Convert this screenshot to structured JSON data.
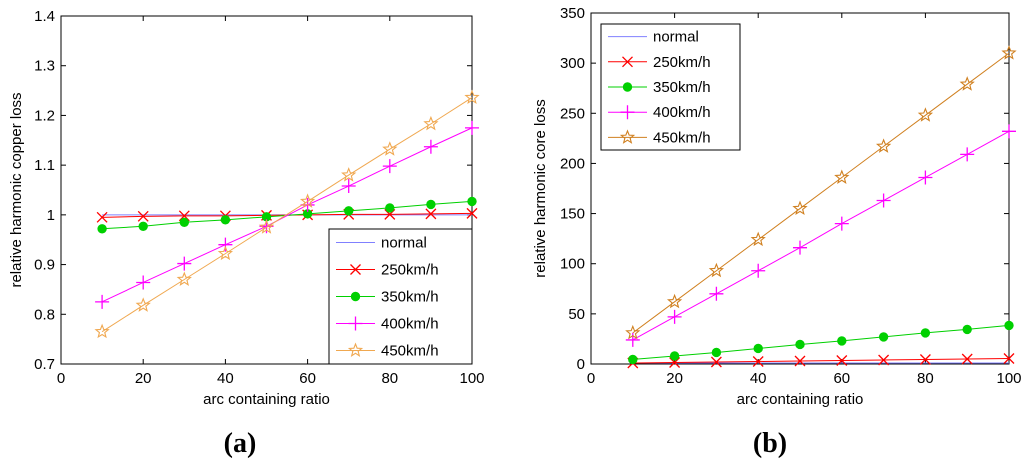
{
  "chart_data": [
    {
      "type": "line",
      "panel_label": "(a)",
      "xlabel": "arc containing ratio",
      "ylabel": "relative harmonic copper loss",
      "xlim": [
        0,
        100
      ],
      "ylim": [
        0.7,
        1.4
      ],
      "xticks": [
        "0",
        "20",
        "40",
        "60",
        "80",
        "100"
      ],
      "yticks": [
        "0.7",
        "0.8",
        "0.9",
        "1",
        "1.1",
        "1.2",
        "1.3",
        "1.4"
      ],
      "legend_position": "bottom-right",
      "x": [
        10,
        20,
        30,
        40,
        50,
        60,
        70,
        80,
        90,
        100
      ],
      "series": [
        {
          "name": "normal",
          "color": "#8080ff",
          "marker": "none",
          "values": [
            1.0,
            1.0,
            1.0,
            1.0,
            1.0,
            1.0,
            1.0,
            1.0,
            1.0,
            1.0
          ]
        },
        {
          "name": "250km/h",
          "color": "#ff0000",
          "marker": "x",
          "values": [
            0.995,
            0.997,
            0.998,
            0.998,
            0.999,
            1.0,
            1.001,
            1.001,
            1.002,
            1.003
          ]
        },
        {
          "name": "350km/h",
          "color": "#00d000",
          "marker": "dot",
          "values": [
            0.972,
            0.977,
            0.985,
            0.99,
            0.996,
            1.002,
            1.008,
            1.014,
            1.021,
            1.027
          ]
        },
        {
          "name": "400km/h",
          "color": "#ff00ff",
          "marker": "plus",
          "values": [
            0.825,
            0.864,
            0.902,
            0.94,
            0.977,
            1.02,
            1.058,
            1.098,
            1.137,
            1.175
          ]
        },
        {
          "name": "450km/h",
          "color": "#f0a850",
          "marker": "star",
          "values": [
            0.765,
            0.818,
            0.87,
            0.922,
            0.975,
            1.027,
            1.08,
            1.132,
            1.183,
            1.236
          ]
        }
      ]
    },
    {
      "type": "line",
      "panel_label": "(b)",
      "xlabel": "arc containing ratio",
      "ylabel": "relative harmonic core loss",
      "xlim": [
        0,
        100
      ],
      "ylim": [
        0,
        350
      ],
      "xticks": [
        "0",
        "20",
        "40",
        "60",
        "80",
        "100"
      ],
      "yticks": [
        "0",
        "50",
        "100",
        "150",
        "200",
        "250",
        "300",
        "350"
      ],
      "legend_position": "top-left",
      "x": [
        10,
        20,
        30,
        40,
        50,
        60,
        70,
        80,
        90,
        100
      ],
      "series": [
        {
          "name": "normal",
          "color": "#8080ff",
          "marker": "none",
          "values": [
            1,
            1,
            1,
            1,
            1,
            1,
            1,
            1,
            1,
            1
          ]
        },
        {
          "name": "250km/h",
          "color": "#ff0000",
          "marker": "x",
          "values": [
            1.0,
            1.5,
            2.0,
            2.5,
            3.0,
            3.5,
            4.0,
            4.5,
            5.0,
            5.5
          ]
        },
        {
          "name": "350km/h",
          "color": "#00d000",
          "marker": "dot",
          "values": [
            4.5,
            8.0,
            11.5,
            15.5,
            19.5,
            23.0,
            27.0,
            31.0,
            34.5,
            38.5
          ]
        },
        {
          "name": "400km/h",
          "color": "#ff00ff",
          "marker": "plus",
          "values": [
            24,
            47,
            70,
            93,
            116,
            140,
            163,
            186,
            209,
            232
          ]
        },
        {
          "name": "450km/h",
          "color": "#d08020",
          "marker": "star",
          "values": [
            31,
            62,
            93,
            124,
            155,
            186,
            217,
            248,
            279,
            310
          ]
        }
      ]
    }
  ]
}
